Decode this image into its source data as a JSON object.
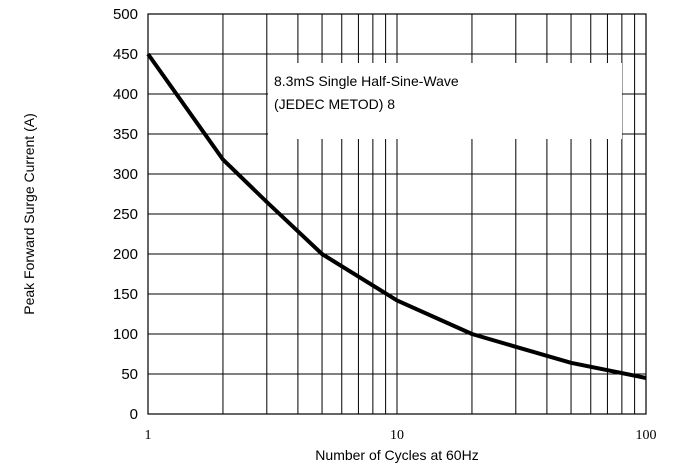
{
  "chart_data": {
    "type": "line",
    "title": "",
    "xlabel": "Number of Cycles at 60Hz",
    "ylabel": "Peak Forward Surge Current (A)",
    "x_scale": "log",
    "xlim": [
      1,
      100
    ],
    "ylim": [
      0,
      500
    ],
    "grid": true,
    "x_ticks": [
      1,
      10,
      100
    ],
    "x_tick_labels": [
      "1",
      "10",
      "100"
    ],
    "y_ticks": [
      0,
      50,
      100,
      150,
      200,
      250,
      300,
      350,
      400,
      450,
      500
    ],
    "y_tick_labels": [
      "0",
      "50",
      "100",
      "150",
      "200",
      "250",
      "300",
      "350",
      "400",
      "450",
      "500"
    ],
    "series": [
      {
        "x": [
          1,
          2,
          3,
          5,
          10,
          20,
          30,
          50,
          100
        ],
        "y": [
          450,
          318,
          265,
          200,
          142,
          100,
          84,
          64,
          45
        ]
      }
    ],
    "annotations": [
      "8.3mS Single Half-Sine-Wave",
      "(JEDEC METOD)  8"
    ]
  }
}
